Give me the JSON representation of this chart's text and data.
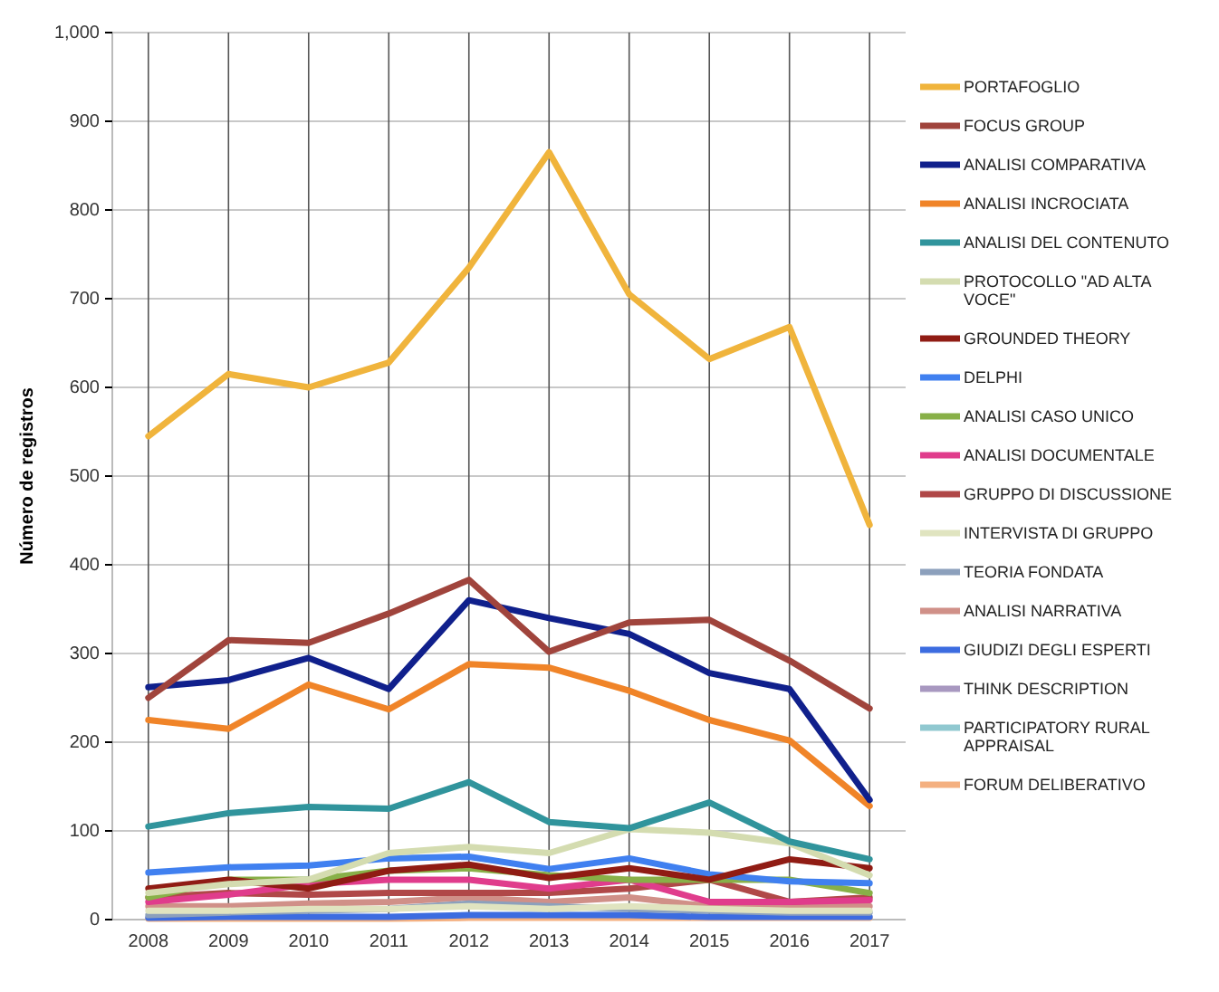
{
  "chart_data": {
    "type": "line",
    "ylabel": "Número de registros",
    "categories": [
      "2008",
      "2009",
      "2010",
      "2011",
      "2012",
      "2013",
      "2014",
      "2015",
      "2016",
      "2017"
    ],
    "ylim": [
      0,
      1000
    ],
    "yticks": [
      0,
      100,
      200,
      300,
      400,
      500,
      600,
      700,
      800,
      900,
      {
        "value": 1000,
        "label": "1,000"
      }
    ],
    "grid": true,
    "legend": "right",
    "series": [
      {
        "name": "PORTAFOGLIO",
        "color": "#f0b43c",
        "values": [
          545,
          615,
          600,
          628,
          735,
          865,
          705,
          632,
          668,
          445
        ]
      },
      {
        "name": "FOCUS GROUP",
        "color": "#a0443c",
        "values": [
          250,
          315,
          312,
          345,
          383,
          302,
          335,
          338,
          292,
          238
        ]
      },
      {
        "name": "ANALISI COMPARATIVA",
        "color": "#10208c",
        "values": [
          262,
          270,
          295,
          260,
          360,
          340,
          322,
          278,
          260,
          135
        ]
      },
      {
        "name": "ANALISI INCROCIATA",
        "color": "#f08428",
        "values": [
          225,
          215,
          265,
          237,
          288,
          284,
          258,
          225,
          202,
          128
        ]
      },
      {
        "name": "ANALISI DEL CONTENUTO",
        "color": "#30949c",
        "values": [
          105,
          120,
          127,
          125,
          155,
          110,
          103,
          132,
          88,
          68
        ]
      },
      {
        "name": "PROTOCOLLO \"AD ALTA VOCE\"",
        "color": "#d4dcb0",
        "values": [
          30,
          40,
          45,
          75,
          82,
          75,
          102,
          98,
          86,
          50
        ]
      },
      {
        "name": "GROUNDED THEORY",
        "color": "#901c14",
        "values": [
          35,
          45,
          35,
          55,
          62,
          47,
          58,
          45,
          68,
          58
        ]
      },
      {
        "name": "DELPHI",
        "color": "#4080f0",
        "values": [
          53,
          59,
          61,
          69,
          71,
          57,
          69,
          51,
          43,
          41
        ]
      },
      {
        "name": "ANALISI CASO UNICO",
        "color": "#88b048",
        "values": [
          25,
          45,
          45,
          55,
          58,
          50,
          45,
          45,
          45,
          30
        ]
      },
      {
        "name": "ANALISI DOCUMENTALE",
        "color": "#e03c8c",
        "values": [
          20,
          28,
          40,
          45,
          45,
          35,
          45,
          20,
          20,
          22
        ]
      },
      {
        "name": "GRUPPO DI DISCUSSIONE",
        "color": "#b04848",
        "values": [
          25,
          30,
          28,
          30,
          30,
          30,
          35,
          45,
          20,
          25
        ]
      },
      {
        "name": "INTERVISTA DI GRUPPO",
        "color": "#e0e4c0",
        "values": [
          10,
          10,
          12,
          12,
          15,
          12,
          15,
          12,
          10,
          10
        ]
      },
      {
        "name": "TEORIA FONDATA",
        "color": "#8ca0bc",
        "values": [
          5,
          8,
          10,
          12,
          18,
          15,
          12,
          10,
          8,
          8
        ]
      },
      {
        "name": "ANALISI NARRATIVA",
        "color": "#d09088",
        "values": [
          15,
          15,
          18,
          20,
          25,
          20,
          25,
          15,
          15,
          15
        ]
      },
      {
        "name": "GIUDIZI DEGLI ESPERTI",
        "color": "#3c6ce0",
        "values": [
          2,
          3,
          3,
          3,
          5,
          5,
          5,
          3,
          3,
          3
        ]
      },
      {
        "name": "THINK DESCRIPTION",
        "color": "#a898c0",
        "values": [
          null,
          null,
          null,
          null,
          null,
          null,
          null,
          null,
          null,
          null
        ]
      },
      {
        "name": "PARTICIPATORY RURAL APPRAISAL",
        "color": "#90c8d0",
        "values": [
          null,
          null,
          null,
          null,
          null,
          null,
          null,
          null,
          null,
          null
        ]
      },
      {
        "name": "FORUM DELIBERATIVO",
        "color": "#f4b080",
        "values": [
          1,
          1,
          1,
          1,
          2,
          2,
          2,
          2,
          2,
          2
        ]
      }
    ]
  }
}
